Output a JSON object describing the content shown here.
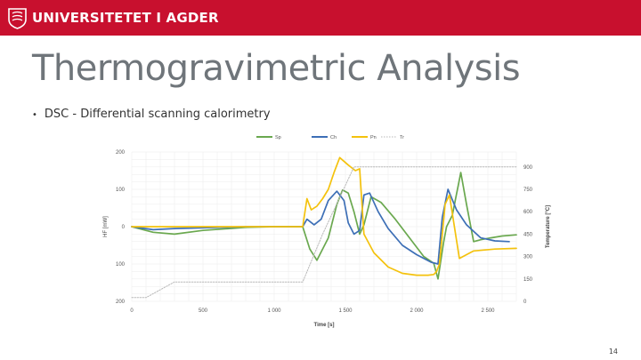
{
  "header": {
    "brand": "UNIVERSITETET I AGDER",
    "logo": "uia-crest-logo"
  },
  "slide": {
    "title": "Thermogravimetric Analysis",
    "bullet": "DSC - Differential scanning calorimetry",
    "page_number": "14"
  },
  "chart_data": {
    "type": "line",
    "xlabel": "Time [s]",
    "ylabel_left": "HF [mW]",
    "ylabel_right": "Temperature [°C]",
    "xlim": [
      0,
      2700
    ],
    "ylim_left": [
      -200,
      200
    ],
    "ylim_right": [
      0,
      1000
    ],
    "x_ticks": [
      "0",
      "500",
      "1 000",
      "1 500",
      "2 000",
      "2 500"
    ],
    "x_tick_values": [
      0,
      500,
      1000,
      1500,
      2000,
      2500
    ],
    "y_left_ticks": [
      "200",
      "100",
      "0",
      "100",
      "200"
    ],
    "y_left_tick_values": [
      200,
      100,
      0,
      -100,
      -200
    ],
    "y_right_ticks": [
      "900",
      "750",
      "600",
      "450",
      "300",
      "150",
      "0"
    ],
    "y_right_tick_values": [
      900,
      750,
      600,
      450,
      300,
      150,
      0
    ],
    "grid": true,
    "legend_position": "top",
    "series": [
      {
        "name": "Sp",
        "axis": "left",
        "color": "#6aa84f",
        "style": "solid",
        "x": [
          0,
          150,
          300,
          500,
          800,
          1000,
          1200,
          1250,
          1300,
          1380,
          1440,
          1480,
          1520,
          1560,
          1600,
          1630,
          1680,
          1750,
          1850,
          1950,
          2050,
          2120,
          2150,
          2190,
          2210,
          2250,
          2310,
          2350,
          2400,
          2450,
          2520,
          2600,
          2700
        ],
        "y": [
          0,
          -15,
          -20,
          -10,
          -2,
          0,
          0,
          -60,
          -90,
          -30,
          60,
          98,
          90,
          40,
          -20,
          5,
          80,
          65,
          20,
          -30,
          -80,
          -98,
          -140,
          -40,
          0,
          30,
          145,
          60,
          -40,
          -35,
          -30,
          -25,
          -22
        ]
      },
      {
        "name": "Ch",
        "axis": "left",
        "color": "#3d6fb6",
        "style": "solid",
        "x": [
          0,
          150,
          300,
          500,
          800,
          1000,
          1200,
          1230,
          1280,
          1330,
          1380,
          1440,
          1490,
          1520,
          1560,
          1600,
          1630,
          1670,
          1730,
          1800,
          1900,
          2000,
          2100,
          2150,
          2180,
          2220,
          2280,
          2350,
          2450,
          2550,
          2650
        ],
        "y": [
          0,
          -8,
          -5,
          -3,
          0,
          0,
          0,
          20,
          5,
          20,
          70,
          95,
          70,
          10,
          -20,
          -10,
          85,
          90,
          40,
          -5,
          -50,
          -75,
          -95,
          -100,
          25,
          100,
          45,
          5,
          -30,
          -38,
          -40
        ]
      },
      {
        "name": "Pn",
        "axis": "left",
        "color": "#f4c20d",
        "style": "solid",
        "x": [
          0,
          300,
          600,
          900,
          1150,
          1200,
          1230,
          1260,
          1300,
          1340,
          1380,
          1420,
          1460,
          1520,
          1570,
          1600,
          1630,
          1700,
          1800,
          1900,
          2000,
          2080,
          2120,
          2140,
          2160,
          2200,
          2230,
          2300,
          2400,
          2550,
          2700
        ],
        "y": [
          0,
          0,
          0,
          0,
          0,
          0,
          75,
          45,
          55,
          75,
          100,
          145,
          185,
          165,
          150,
          155,
          -20,
          -70,
          -108,
          -125,
          -130,
          -130,
          -128,
          -120,
          -100,
          60,
          85,
          -85,
          -65,
          -60,
          -58
        ]
      },
      {
        "name": "Tr",
        "axis": "right",
        "color": "#b8b8b8",
        "style": "dotted",
        "x": [
          0,
          100,
          300,
          500,
          700,
          900,
          1100,
          1200,
          1340,
          1560,
          1620,
          1900,
          2200,
          2500,
          2700
        ],
        "y": [
          25,
          25,
          130,
          130,
          130,
          130,
          130,
          130,
          450,
          900,
          900,
          900,
          900,
          900,
          900
        ]
      }
    ]
  }
}
